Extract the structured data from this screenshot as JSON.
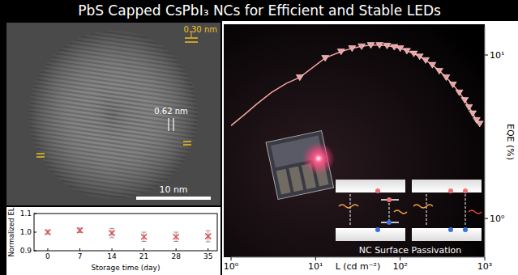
{
  "title": "PbS Capped CsPbI₃ NCs for Efficient and Stable LEDs",
  "tem_image": {
    "spacing_a": "0.30 nm",
    "spacing_b": "0.62 nm",
    "scale_bar": "10 nm"
  },
  "diagram": {
    "label": "NC Surface Passivation"
  },
  "chart_data": [
    {
      "type": "scatter",
      "x_label": "Storage time (day)",
      "y_label": "Normalized EL",
      "x": [
        0,
        7,
        14,
        21,
        28,
        35
      ],
      "values": [
        1.0,
        1.01,
        0.995,
        0.975,
        0.975,
        0.978
      ],
      "errors": [
        0.01,
        0.012,
        0.025,
        0.025,
        0.025,
        0.03
      ],
      "color": "#e05050",
      "marker": "x",
      "xlim": [
        -3,
        37
      ],
      "xticks": [
        0,
        7,
        14,
        21,
        28,
        35
      ],
      "ylim": [
        0.9,
        1.1
      ],
      "yticks": [
        0.9,
        {
          "value": 1,
          "label": "1.0"
        },
        1.1
      ]
    },
    {
      "type": "line",
      "log": true,
      "x_label": "L (cd m⁻²)",
      "y_label": "EQE (%)",
      "xlim": [
        1,
        1000
      ],
      "xticks": [
        {
          "value": 1,
          "label": "10⁰"
        },
        {
          "value": 10,
          "label": "10¹"
        },
        {
          "value": 100,
          "label": "10²"
        },
        {
          "value": 1000,
          "label": "10³"
        }
      ],
      "ylim": [
        0.58,
        14.9
      ],
      "yticks": [
        {
          "value": 1,
          "label": "10⁰"
        },
        {
          "value": 10,
          "label": "10¹"
        }
      ],
      "series": [
        {
          "type": "line",
          "color": "#f4a0a0",
          "x": [
            1,
            1.5,
            2,
            3,
            4.5,
            6.5,
            13,
            20,
            27,
            35,
            45,
            57,
            70,
            85,
            100,
            120,
            145,
            170,
            200,
            240,
            290,
            350,
            420,
            500,
            580,
            650,
            720,
            800,
            870
          ],
          "values": [
            3.7,
            4.4,
            5.0,
            5.9,
            6.7,
            7.3,
            9.6,
            10.5,
            11.0,
            11.3,
            11.5,
            11.5,
            11.4,
            11.2,
            11.0,
            10.6,
            10.2,
            9.8,
            9.3,
            8.7,
            8.0,
            7.3,
            6.6,
            5.9,
            5.3,
            4.8,
            4.4,
            4.0,
            3.8
          ]
        },
        {
          "type": "scatter",
          "color": "#f4a0a0",
          "marker": "triangle_down",
          "x": [
            6.5,
            13,
            20,
            27,
            35,
            45,
            57,
            70,
            85,
            100,
            120,
            145,
            170,
            200,
            240,
            290,
            350,
            420,
            500,
            580,
            650,
            720,
            800,
            870
          ],
          "values": [
            7.3,
            9.6,
            10.5,
            11.0,
            11.3,
            11.5,
            11.5,
            11.4,
            11.2,
            11.0,
            10.6,
            10.2,
            9.8,
            9.3,
            8.7,
            8.0,
            7.3,
            6.6,
            5.9,
            5.3,
            4.8,
            4.4,
            4.0,
            3.8
          ]
        }
      ]
    }
  ]
}
